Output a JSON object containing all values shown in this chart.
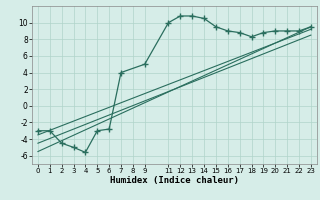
{
  "xlabel": "Humidex (Indice chaleur)",
  "bg_color": "#d6ede8",
  "line_color": "#2a6e5e",
  "grid_color": "#b0d4ca",
  "xlim": [
    -0.5,
    23.5
  ],
  "ylim": [
    -7,
    12
  ],
  "xticks": [
    0,
    1,
    2,
    3,
    4,
    5,
    6,
    7,
    8,
    9,
    11,
    12,
    13,
    14,
    15,
    16,
    17,
    18,
    19,
    20,
    21,
    22,
    23
  ],
  "yticks": [
    -6,
    -4,
    -2,
    0,
    2,
    4,
    6,
    8,
    10
  ],
  "curve_x": [
    0,
    1,
    2,
    3,
    4,
    5,
    6,
    7,
    9,
    11,
    12,
    13,
    14,
    15,
    16,
    17,
    18,
    19,
    20,
    21,
    22,
    23
  ],
  "curve_y": [
    -3.0,
    -3.0,
    -4.5,
    -5.0,
    -5.6,
    -3.0,
    -2.8,
    4.0,
    5.0,
    10.0,
    10.8,
    10.8,
    10.5,
    9.5,
    9.0,
    8.8,
    8.3,
    8.8,
    9.0,
    9.0,
    9.0,
    9.5
  ],
  "line1_x": [
    0,
    23
  ],
  "line1_y": [
    -3.5,
    9.2
  ],
  "line2_x": [
    0,
    23
  ],
  "line2_y": [
    -5.5,
    9.5
  ],
  "line3_x": [
    0,
    23
  ],
  "line3_y": [
    -4.5,
    8.5
  ]
}
